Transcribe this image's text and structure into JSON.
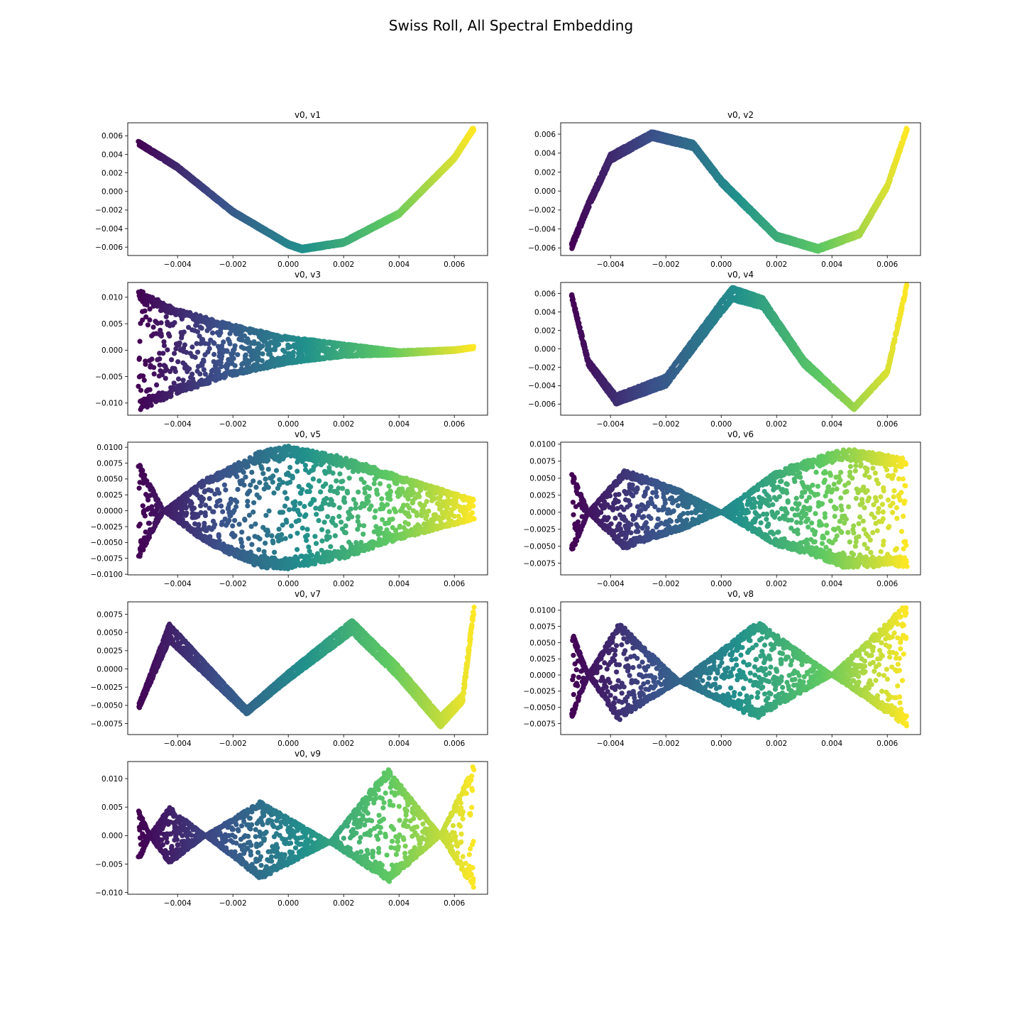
{
  "title": "Swiss Roll, All Spectral Embedding",
  "chart_data": {
    "type": "scatter",
    "colormap": [
      "#440154",
      "#3b528b",
      "#21918c",
      "#5ec962",
      "#fde725"
    ],
    "x_range": [
      -0.0054,
      0.0067
    ],
    "xlim": [
      -0.0058,
      0.0072
    ],
    "xticks": [
      -0.004,
      -0.002,
      0.0,
      0.002,
      0.004,
      0.006
    ],
    "xtick_labels": [
      "−0.004",
      "−0.002",
      "0.000",
      "0.002",
      "0.004",
      "0.006"
    ],
    "panels": [
      {
        "title": "v0, v1",
        "ylim": [
          -0.0069,
          0.0074
        ],
        "yticks": [
          -0.006,
          -0.004,
          -0.002,
          0.0,
          0.002,
          0.004,
          0.006
        ],
        "ytick_labels": [
          "−0.006",
          "−0.004",
          "−0.002",
          "0.000",
          "0.002",
          "0.004",
          "0.006"
        ],
        "center": [
          [
            -0.0054,
            0.0052
          ],
          [
            -0.004,
            0.0026
          ],
          [
            -0.002,
            -0.0022
          ],
          [
            0.0,
            -0.0057
          ],
          [
            0.0005,
            -0.0062
          ],
          [
            0.002,
            -0.0055
          ],
          [
            0.004,
            -0.0024
          ],
          [
            0.006,
            0.0036
          ],
          [
            0.0067,
            0.0068
          ]
        ],
        "halfwidth": [
          [
            -0.0054,
            0.0002
          ],
          [
            0.0067,
            0.0002
          ]
        ]
      },
      {
        "title": "v0, v2",
        "ylim": [
          -0.0068,
          0.0072
        ],
        "yticks": [
          -0.006,
          -0.004,
          -0.002,
          0.0,
          0.002,
          0.004,
          0.006
        ],
        "ytick_labels": [
          "−0.006",
          "−0.004",
          "−0.002",
          "0.000",
          "0.002",
          "0.004",
          "0.006"
        ],
        "center": [
          [
            -0.0054,
            -0.0058
          ],
          [
            -0.0048,
            -0.0015
          ],
          [
            -0.004,
            0.0035
          ],
          [
            -0.0025,
            0.0059
          ],
          [
            -0.001,
            0.0048
          ],
          [
            0.0,
            0.001
          ],
          [
            0.002,
            -0.0048
          ],
          [
            0.0035,
            -0.0061
          ],
          [
            0.005,
            -0.0045
          ],
          [
            0.006,
            0.0005
          ],
          [
            0.0067,
            0.0065
          ]
        ],
        "halfwidth": [
          [
            -0.0054,
            0.0003
          ],
          [
            -0.004,
            0.0004
          ],
          [
            0.0067,
            0.0002
          ]
        ]
      },
      {
        "title": "v0, v3",
        "ylim": [
          -0.0123,
          0.0128
        ],
        "yticks": [
          -0.01,
          -0.005,
          0.0,
          0.005,
          0.01
        ],
        "ytick_labels": [
          "−0.010",
          "−0.005",
          "0.000",
          "0.005",
          "0.010"
        ],
        "center": [
          [
            -0.0054,
            0.0
          ],
          [
            -0.004,
            -0.0002
          ],
          [
            -0.002,
            0.0
          ],
          [
            0.0,
            0.0
          ],
          [
            0.002,
            0.0
          ],
          [
            0.004,
            -0.0005
          ],
          [
            0.006,
            0.0
          ],
          [
            0.0067,
            0.0005
          ]
        ],
        "halfwidth": [
          [
            -0.0054,
            0.0115
          ],
          [
            -0.004,
            0.008
          ],
          [
            -0.002,
            0.0048
          ],
          [
            0.0,
            0.0025
          ],
          [
            0.002,
            0.0012
          ],
          [
            0.004,
            0.0004
          ],
          [
            0.0067,
            0.0002
          ]
        ]
      },
      {
        "title": "v0, v4",
        "ylim": [
          -0.0072,
          0.0072
        ],
        "yticks": [
          -0.006,
          -0.004,
          -0.002,
          0.0,
          0.002,
          0.004,
          0.006
        ],
        "ytick_labels": [
          "−0.006",
          "−0.004",
          "−0.002",
          "0.000",
          "0.002",
          "0.004",
          "0.006"
        ],
        "center": [
          [
            -0.0054,
            0.0057
          ],
          [
            -0.0048,
            -0.0015
          ],
          [
            -0.0038,
            -0.0055
          ],
          [
            -0.002,
            -0.0035
          ],
          [
            0.0,
            0.0045
          ],
          [
            0.0004,
            0.006
          ],
          [
            0.0015,
            0.005
          ],
          [
            0.003,
            -0.0015
          ],
          [
            0.0048,
            -0.0064
          ],
          [
            0.006,
            -0.0025
          ],
          [
            0.0067,
            0.0068
          ]
        ],
        "halfwidth": [
          [
            -0.0054,
            0.0002
          ],
          [
            -0.0038,
            0.0005
          ],
          [
            0.0004,
            0.0007
          ],
          [
            0.0048,
            0.0002
          ],
          [
            0.0067,
            0.0002
          ]
        ]
      },
      {
        "title": "v0, v5",
        "ylim": [
          -0.0101,
          0.0108
        ],
        "yticks": [
          -0.01,
          -0.0075,
          -0.005,
          -0.0025,
          0.0,
          0.0025,
          0.005,
          0.0075,
          0.01
        ],
        "ytick_labels": [
          "−0.0100",
          "−0.0075",
          "−0.0050",
          "−0.0025",
          "0.0000",
          "0.0025",
          "0.0050",
          "0.0075",
          "0.0100"
        ],
        "center": [
          [
            -0.0054,
            0.0
          ],
          [
            -0.0045,
            0.0
          ],
          [
            -0.002,
            0.0
          ],
          [
            0.0,
            0.0005
          ],
          [
            0.002,
            0.0005
          ],
          [
            0.004,
            0.0005
          ],
          [
            0.0067,
            0.0002
          ]
        ],
        "halfwidth": [
          [
            -0.0054,
            0.0075
          ],
          [
            -0.0045,
            0.0
          ],
          [
            -0.003,
            0.005
          ],
          [
            -0.001,
            0.0092
          ],
          [
            0.0,
            0.0097
          ],
          [
            0.002,
            0.008
          ],
          [
            0.004,
            0.005
          ],
          [
            0.0067,
            0.0016
          ]
        ]
      },
      {
        "title": "v0, v6",
        "ylim": [
          -0.0092,
          0.0103
        ],
        "yticks": [
          -0.0075,
          -0.005,
          -0.0025,
          0.0,
          0.0025,
          0.005,
          0.0075,
          0.01
        ],
        "ytick_labels": [
          "−0.0075",
          "−0.0050",
          "−0.0025",
          "0.0000",
          "0.0025",
          "0.0050",
          "0.0075",
          "0.0100"
        ],
        "center": [
          [
            -0.0054,
            0.0
          ],
          [
            -0.0048,
            0.0
          ],
          [
            -0.003,
            0.0005
          ],
          [
            0.0,
            0.0
          ],
          [
            0.003,
            0.0008
          ],
          [
            0.005,
            0.0005
          ],
          [
            0.0067,
            0.0
          ]
        ],
        "halfwidth": [
          [
            -0.0054,
            0.006
          ],
          [
            -0.0048,
            0.0
          ],
          [
            -0.0035,
            0.0058
          ],
          [
            -0.0015,
            0.003
          ],
          [
            0.0,
            0.0
          ],
          [
            0.002,
            0.0055
          ],
          [
            0.0045,
            0.0088
          ],
          [
            0.006,
            0.0082
          ],
          [
            0.0067,
            0.008
          ]
        ]
      },
      {
        "title": "v0, v7",
        "ylim": [
          -0.009,
          0.0092
        ],
        "yticks": [
          -0.0075,
          -0.005,
          -0.0025,
          0.0,
          0.0025,
          0.005,
          0.0075
        ],
        "ytick_labels": [
          "−0.0075",
          "−0.0050",
          "−0.0025",
          "0.0000",
          "0.0025",
          "0.0050",
          "0.0075"
        ],
        "center": [
          [
            -0.0054,
            -0.0052
          ],
          [
            -0.0043,
            0.005
          ],
          [
            -0.003,
            0.0
          ],
          [
            -0.0015,
            -0.0058
          ],
          [
            0.0,
            -0.001
          ],
          [
            0.0023,
            0.0058
          ],
          [
            0.004,
            -0.0005
          ],
          [
            0.0055,
            -0.0072
          ],
          [
            0.0063,
            -0.004
          ],
          [
            0.0067,
            0.008
          ]
        ],
        "halfwidth": [
          [
            -0.0054,
            0.0003
          ],
          [
            -0.0043,
            0.0012
          ],
          [
            -0.0015,
            0.0004
          ],
          [
            0.0023,
            0.0009
          ],
          [
            0.0055,
            0.0008
          ],
          [
            0.0067,
            0.0005
          ]
        ]
      },
      {
        "title": "v0, v8",
        "ylim": [
          -0.0092,
          0.0113
        ],
        "yticks": [
          -0.0075,
          -0.005,
          -0.0025,
          0.0,
          0.0025,
          0.005,
          0.0075,
          0.01
        ],
        "ytick_labels": [
          "−0.0075",
          "−0.0050",
          "−0.0025",
          "0.0000",
          "0.0025",
          "0.0050",
          "0.0075",
          "0.0100"
        ],
        "center": [
          [
            -0.0054,
            0.0
          ],
          [
            -0.0048,
            0.0
          ],
          [
            -0.0035,
            0.0005
          ],
          [
            -0.0015,
            -0.001
          ],
          [
            0.0015,
            0.0008
          ],
          [
            0.004,
            0.0
          ],
          [
            0.0067,
            0.0015
          ]
        ],
        "halfwidth": [
          [
            -0.0054,
            0.0068
          ],
          [
            -0.0048,
            0.0
          ],
          [
            -0.0037,
            0.0075
          ],
          [
            -0.0015,
            0.0
          ],
          [
            0.0013,
            0.0075
          ],
          [
            0.004,
            0.0
          ],
          [
            0.0067,
            0.0095
          ]
        ]
      },
      {
        "title": "v0, v9",
        "ylim": [
          -0.0103,
          0.013
        ],
        "yticks": [
          -0.01,
          -0.005,
          0.0,
          0.005,
          0.01
        ],
        "ytick_labels": [
          "−0.010",
          "−0.005",
          "0.000",
          "0.005",
          "0.010"
        ],
        "center": [
          [
            -0.0054,
            0.0
          ],
          [
            -0.003,
            0.0
          ],
          [
            -0.001,
            -0.0008
          ],
          [
            0.0015,
            -0.0012
          ],
          [
            0.0035,
            0.0018
          ],
          [
            0.0055,
            0.0
          ],
          [
            0.0067,
            0.0015
          ]
        ],
        "halfwidth": [
          [
            -0.0054,
            0.0045
          ],
          [
            -0.005,
            0.0
          ],
          [
            -0.0043,
            0.005
          ],
          [
            -0.003,
            0.0
          ],
          [
            -0.001,
            0.0068
          ],
          [
            0.0015,
            0.0
          ],
          [
            0.0036,
            0.01
          ],
          [
            0.0055,
            0.0
          ],
          [
            0.0067,
            0.011
          ]
        ]
      }
    ]
  }
}
